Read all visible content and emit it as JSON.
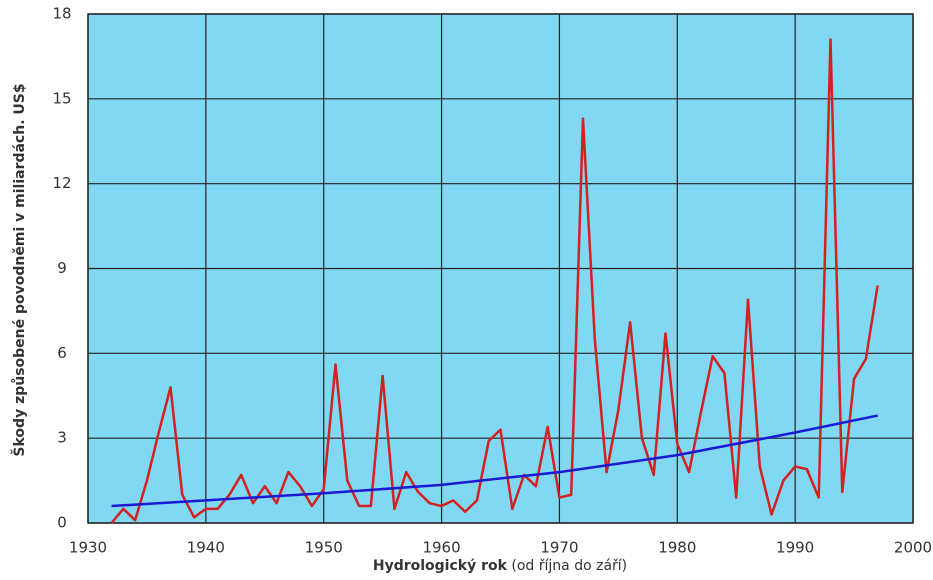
{
  "chart_data": {
    "type": "line",
    "ylabel": "Škody způsobené povodněmi v miliardách. US$",
    "xlabel": "Hydrologický rok",
    "xlabel_note": "(od října do září)",
    "xlim": [
      1930,
      2000
    ],
    "xticks": [
      1930,
      1940,
      1950,
      1960,
      1970,
      1980,
      1990,
      2000
    ],
    "ylim": [
      0,
      18
    ],
    "yticks": [
      0,
      3,
      6,
      9,
      12,
      15,
      18
    ],
    "grid": true,
    "background": "#80d8f2",
    "series": [
      {
        "color": "#d42020",
        "x": [
          1932,
          1933,
          1934,
          1935,
          1936,
          1937,
          1938,
          1939,
          1940,
          1941,
          1942,
          1943,
          1944,
          1945,
          1946,
          1947,
          1948,
          1949,
          1950,
          1951,
          1952,
          1953,
          1954,
          1955,
          1956,
          1957,
          1958,
          1959,
          1960,
          1961,
          1962,
          1963,
          1964,
          1965,
          1966,
          1967,
          1968,
          1969,
          1970,
          1971,
          1972,
          1973,
          1974,
          1975,
          1976,
          1977,
          1978,
          1979,
          1980,
          1981,
          1982,
          1983,
          1984,
          1985,
          1986,
          1987,
          1988,
          1989,
          1990,
          1991,
          1992,
          1993,
          1994,
          1995,
          1996,
          1997
        ],
        "values": [
          0.0,
          0.5,
          0.1,
          1.5,
          3.2,
          4.8,
          1.0,
          0.2,
          0.5,
          0.5,
          1.0,
          1.7,
          0.7,
          1.3,
          0.7,
          1.8,
          1.3,
          0.6,
          1.2,
          5.6,
          1.5,
          0.6,
          0.6,
          5.2,
          0.5,
          1.8,
          1.1,
          0.7,
          0.6,
          0.8,
          0.4,
          0.8,
          2.9,
          3.3,
          0.5,
          1.7,
          1.3,
          3.4,
          0.9,
          1.0,
          14.3,
          6.5,
          1.8,
          4.0,
          7.1,
          3.0,
          1.7,
          6.7,
          2.8,
          1.8,
          3.9,
          5.9,
          5.3,
          0.9,
          7.9,
          2.0,
          0.3,
          1.5,
          2.0,
          1.9,
          0.9,
          17.1,
          1.1,
          5.1,
          5.8,
          8.4
        ]
      },
      {
        "color": "#1a1ad6",
        "x": [
          1932,
          1940,
          1950,
          1960,
          1970,
          1980,
          1990,
          1997
        ],
        "values": [
          0.6,
          0.8,
          1.05,
          1.35,
          1.8,
          2.4,
          3.2,
          3.8
        ]
      }
    ]
  }
}
